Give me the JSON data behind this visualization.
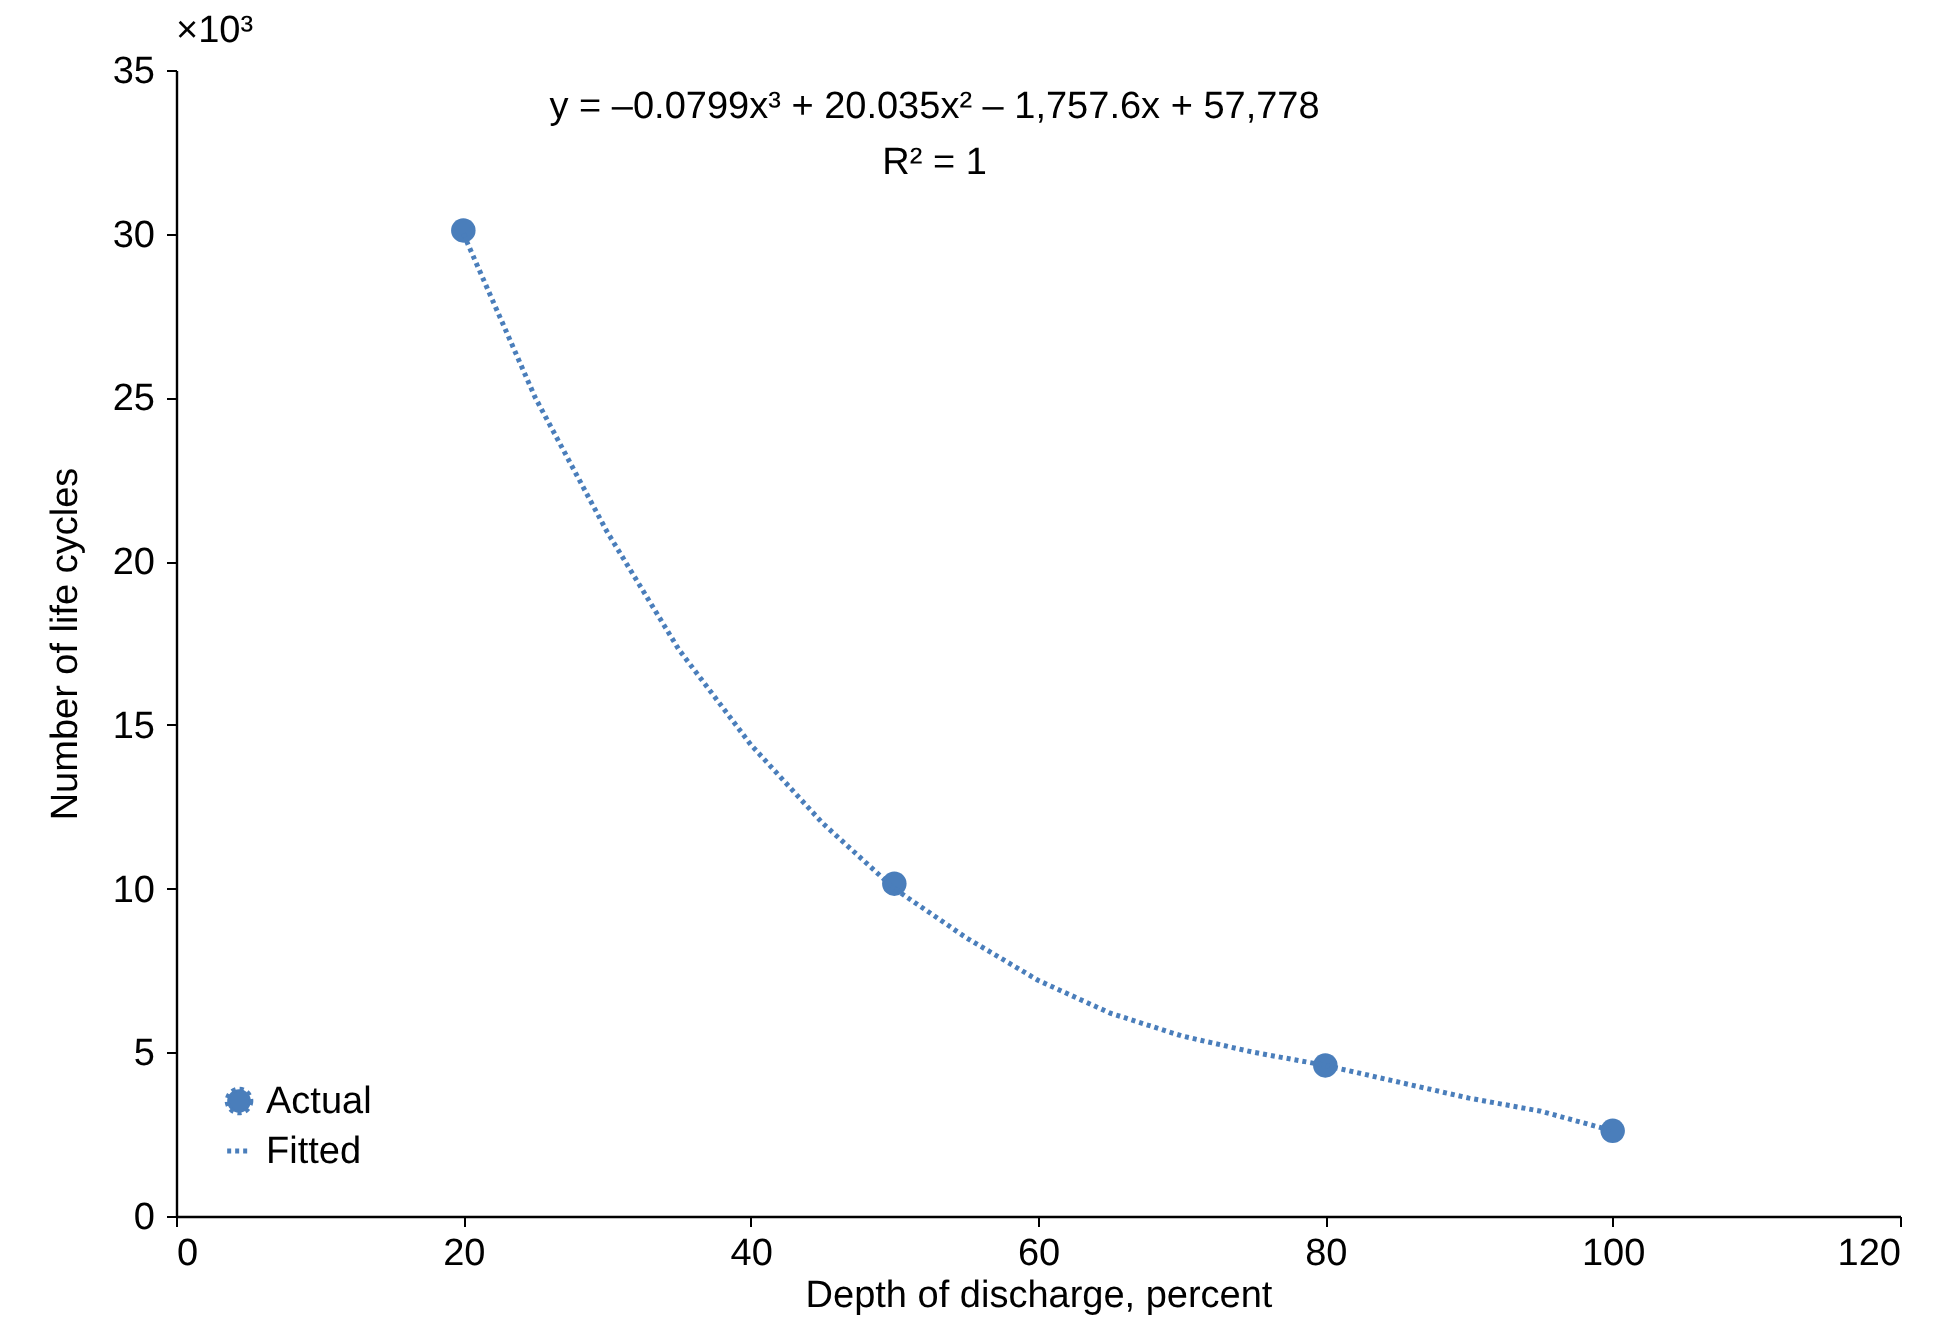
{
  "chart_data": {
    "type": "scatter",
    "xlabel": "Depth of discharge, percent",
    "ylabel": "Number of life cycles",
    "annotations": [
      "y = –0.0799x³ + 20.035x² – 1,757.6x + 57,778",
      "R² = 1",
      "×10³"
    ],
    "series": [
      {
        "name": "Actual",
        "color": "#4a7ebb",
        "marker": "circle",
        "x": [
          20,
          50,
          80,
          100
        ],
        "values": [
          30.1,
          10.15,
          4.6,
          2.6
        ]
      },
      {
        "name": "Fitted",
        "type": "line",
        "color": "#4a7ebb",
        "line_style": "dotted",
        "x": [
          20,
          25,
          30,
          35,
          40,
          45,
          50,
          55,
          60,
          65,
          70,
          75,
          80,
          85,
          90,
          95,
          100
        ],
        "values": [
          30.0,
          25.0,
          20.9,
          17.3,
          14.4,
          12.0,
          10.0,
          8.5,
          7.2,
          6.2,
          5.5,
          5.0,
          4.6,
          4.1,
          3.6,
          3.2,
          2.6
        ]
      }
    ],
    "xlim": [
      0,
      120
    ],
    "xticks": [
      0,
      20,
      40,
      60,
      80,
      100,
      120
    ],
    "ylim": [
      0,
      35
    ],
    "yticks": [
      0,
      5,
      10,
      15,
      20,
      25,
      30,
      35
    ],
    "grid": false,
    "legend": "bottom left"
  }
}
